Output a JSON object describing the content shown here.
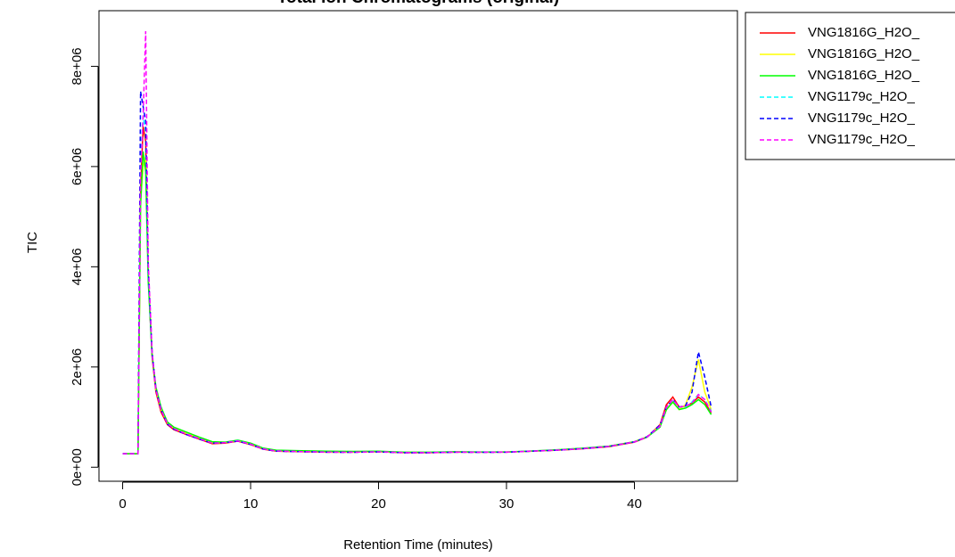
{
  "chart_data": {
    "type": "line",
    "title": "Total Ion Chromatograms (original)",
    "x_label": "Retention Time (minutes)",
    "y_label": "TIC",
    "x": [
      0,
      1,
      1.2,
      1.4,
      1.6,
      1.8,
      2,
      2.3,
      2.6,
      3,
      3.5,
      4,
      5,
      6,
      7,
      8,
      9,
      10,
      11,
      12,
      14,
      16,
      18,
      20,
      22,
      24,
      26,
      28,
      30,
      32,
      34,
      36,
      38,
      40,
      41,
      42,
      42.5,
      43,
      43.5,
      44,
      44.5,
      45,
      45.5,
      46
    ],
    "series": [
      {
        "name": "VNG1816G_H2O_",
        "color": "#ff0000",
        "line_style": "solid",
        "values": [
          270000,
          270000,
          270000,
          5500000,
          6800000,
          6500000,
          3800000,
          2200000,
          1500000,
          1100000,
          850000,
          750000,
          650000,
          560000,
          470000,
          480000,
          520000,
          450000,
          360000,
          320000,
          310000,
          300000,
          300000,
          310000,
          290000,
          290000,
          300000,
          300000,
          300000,
          320000,
          340000,
          370000,
          410000,
          500000,
          600000,
          850000,
          1250000,
          1400000,
          1200000,
          1220000,
          1280000,
          1400000,
          1300000,
          1080000
        ]
      },
      {
        "name": "VNG1816G_H2O_",
        "color": "#ffff00",
        "line_style": "solid",
        "values": [
          270000,
          270000,
          270000,
          5300000,
          6000000,
          6200000,
          3900000,
          2300000,
          1550000,
          1150000,
          880000,
          780000,
          670000,
          580000,
          490000,
          490000,
          530000,
          460000,
          370000,
          330000,
          315000,
          305000,
          300000,
          310000,
          295000,
          295000,
          305000,
          300000,
          305000,
          320000,
          345000,
          375000,
          420000,
          510000,
          610000,
          830000,
          1150000,
          1300000,
          1150000,
          1250000,
          1600000,
          2150000,
          1500000,
          1150000
        ]
      },
      {
        "name": "VNG1816G_H2O_",
        "color": "#00ff00",
        "line_style": "solid",
        "values": [
          270000,
          270000,
          270000,
          5200000,
          6300000,
          5900000,
          3700000,
          2250000,
          1600000,
          1200000,
          900000,
          800000,
          700000,
          600000,
          510000,
          500000,
          540000,
          480000,
          380000,
          340000,
          330000,
          320000,
          315000,
          320000,
          300000,
          300000,
          310000,
          305000,
          305000,
          325000,
          350000,
          380000,
          420000,
          510000,
          600000,
          800000,
          1150000,
          1300000,
          1150000,
          1180000,
          1250000,
          1350000,
          1250000,
          1050000
        ]
      },
      {
        "name": "VNG1179c_H2O_",
        "color": "#00ffff",
        "line_style": "dashed",
        "values": [
          270000,
          270000,
          270000,
          6200000,
          7000000,
          6700000,
          3900000,
          2250000,
          1550000,
          1150000,
          870000,
          770000,
          660000,
          570000,
          480000,
          490000,
          530000,
          460000,
          365000,
          325000,
          312000,
          302000,
          300000,
          308000,
          292000,
          292000,
          302000,
          300000,
          302000,
          322000,
          342000,
          372000,
          415000,
          505000,
          605000,
          820000,
          1200000,
          1350000,
          1200000,
          1210000,
          1300000,
          1450000,
          1350000,
          1120000
        ]
      },
      {
        "name": "VNG1179c_H2O_",
        "color": "#0000ff",
        "line_style": "dashed",
        "values": [
          270000,
          270000,
          270000,
          7500000,
          7200000,
          6900000,
          4000000,
          2300000,
          1550000,
          1150000,
          860000,
          760000,
          650000,
          560000,
          480000,
          490000,
          520000,
          455000,
          360000,
          322000,
          310000,
          300000,
          298000,
          306000,
          290000,
          290000,
          300000,
          298000,
          300000,
          320000,
          340000,
          372000,
          415000,
          505000,
          610000,
          840000,
          1200000,
          1350000,
          1200000,
          1230000,
          1500000,
          2300000,
          1800000,
          1200000
        ]
      },
      {
        "name": "VNG1179c_H2O_",
        "color": "#ff00ff",
        "line_style": "dashed",
        "values": [
          270000,
          270000,
          270000,
          5800000,
          7000000,
          8700000,
          4100000,
          2300000,
          1550000,
          1150000,
          870000,
          770000,
          660000,
          570000,
          480000,
          490000,
          525000,
          460000,
          365000,
          325000,
          312000,
          302000,
          300000,
          308000,
          292000,
          292000,
          302000,
          300000,
          302000,
          322000,
          342000,
          372000,
          415000,
          505000,
          605000,
          820000,
          1200000,
          1350000,
          1200000,
          1220000,
          1280000,
          1450000,
          1350000,
          1100000
        ]
      }
    ],
    "xlim": [
      -1.85,
      48.05
    ],
    "ylim": [
      -280000,
      9110000
    ],
    "xticks": [
      0,
      10,
      20,
      30,
      40
    ],
    "yticks": [
      {
        "value": 0,
        "label": "0e+00"
      },
      {
        "value": 2000000,
        "label": "2e+06"
      },
      {
        "value": 4000000,
        "label": "4e+06"
      },
      {
        "value": 6000000,
        "label": "6e+06"
      },
      {
        "value": 8000000,
        "label": "8e+06"
      }
    ],
    "legend": "top-right"
  }
}
